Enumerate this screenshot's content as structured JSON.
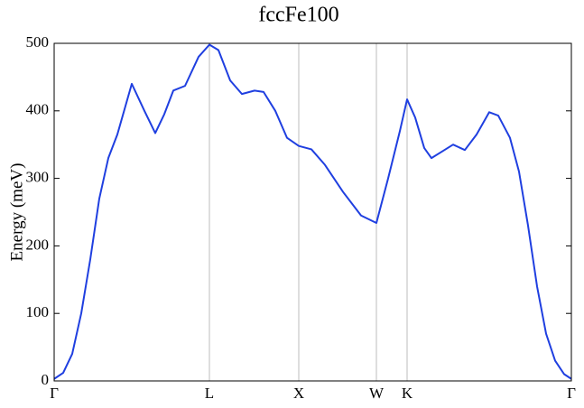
{
  "chart_data": {
    "type": "line",
    "title": "fccFe100",
    "y_label": "Energy (meV)",
    "x": [
      0,
      10,
      20,
      30,
      40,
      50,
      60,
      70,
      86,
      100,
      112,
      122,
      132,
      145,
      160,
      172,
      182,
      195,
      208,
      222,
      232,
      245,
      258,
      271,
      285,
      300,
      320,
      340,
      357,
      370,
      383,
      391,
      400,
      410,
      418,
      430,
      442,
      455,
      468,
      482,
      492,
      505,
      515,
      525,
      535,
      545,
      555,
      565,
      573
    ],
    "series": [
      {
        "color": "#1f3fe0",
        "values": [
          3,
          12,
          40,
          100,
          180,
          270,
          330,
          365,
          440,
          400,
          367,
          395,
          430,
          437,
          480,
          498,
          490,
          445,
          425,
          430,
          428,
          400,
          360,
          348,
          343,
          320,
          280,
          245,
          234,
          300,
          370,
          417,
          390,
          345,
          330,
          340,
          350,
          342,
          365,
          398,
          393,
          360,
          310,
          230,
          140,
          70,
          30,
          10,
          3
        ]
      }
    ],
    "xlim": [
      0,
      573
    ],
    "xticks": [
      {
        "value": 0,
        "label": "Γ"
      },
      {
        "value": 172,
        "label": "L"
      },
      {
        "value": 271,
        "label": "X"
      },
      {
        "value": 357,
        "label": "W"
      },
      {
        "value": 391,
        "label": "K"
      },
      {
        "value": 573,
        "label": "Γ"
      }
    ],
    "ylim": [
      0,
      500
    ],
    "yticks": [
      0,
      100,
      200,
      300,
      400,
      500
    ],
    "x_grid": true
  }
}
